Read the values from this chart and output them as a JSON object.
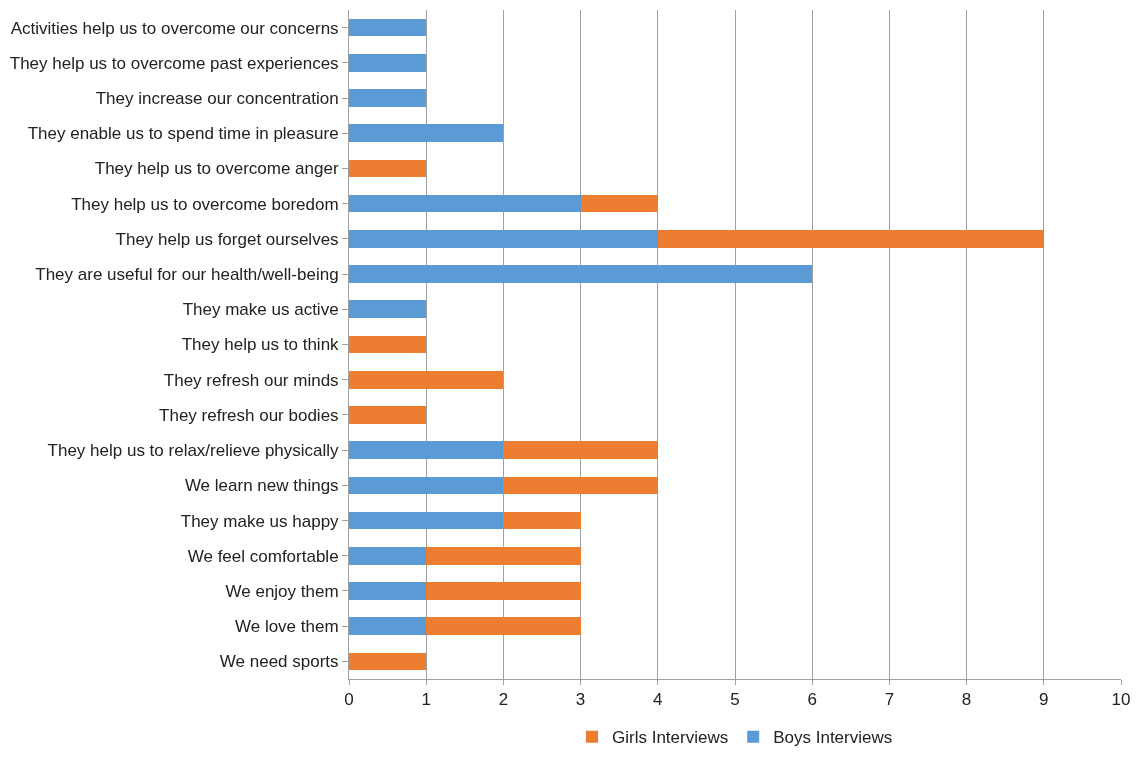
{
  "chart_data": {
    "type": "bar",
    "orientation": "horizontal",
    "stacked": true,
    "categories": [
      "Activities help us to overcome our concerns",
      "They help us to overcome past experiences",
      "They increase our concentration",
      "They enable us to spend time in pleasure",
      "They help us to overcome anger",
      "They help us to overcome boredom",
      "They help us forget ourselves",
      "They are useful for our health/well-being",
      "They make us active",
      "They help us to think",
      "They refresh our minds",
      "They refresh our bodies",
      "They help us to relax/relieve physically",
      "We learn new things",
      "They make us happy",
      "We feel comfortable",
      "We enjoy them",
      "We love them",
      "We need sports"
    ],
    "series": [
      {
        "name": "Boys Interviews",
        "color": "#5b9bd5",
        "values": [
          1,
          1,
          1,
          2,
          null,
          3,
          4,
          6,
          1,
          null,
          null,
          null,
          2,
          2,
          2,
          1,
          1,
          1,
          null
        ]
      },
      {
        "name": "Girls Interviews",
        "color": "#ed7d31",
        "values": [
          null,
          null,
          null,
          null,
          1,
          1,
          5,
          null,
          null,
          1,
          2,
          1,
          2,
          2,
          1,
          2,
          2,
          2,
          1
        ]
      }
    ],
    "xlim": [
      0,
      10
    ],
    "xticks": [
      0,
      1,
      2,
      3,
      4,
      5,
      6,
      7,
      8,
      9,
      10
    ],
    "grid": "x",
    "legend": "bottom"
  }
}
